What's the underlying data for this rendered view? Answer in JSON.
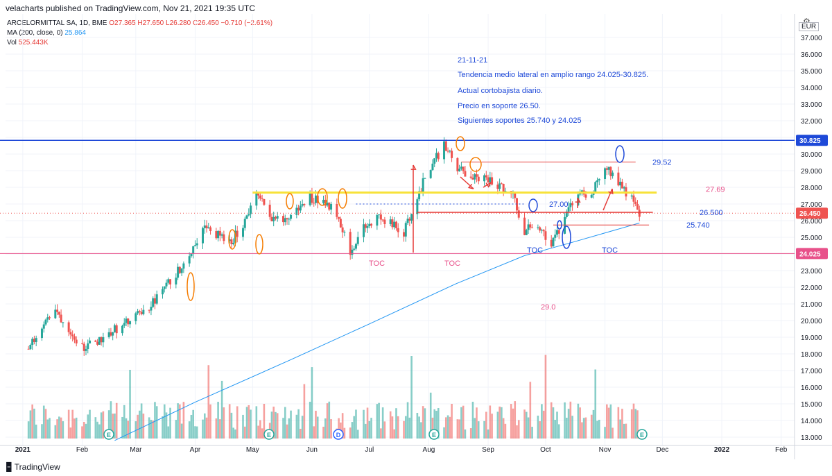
{
  "header": {
    "publish_line": "velacharts published on TradingView.com, Nov 21, 2021 19:35 UTC",
    "symbol_line_prefix": "ARCELORMITTAL SA, 1D, BME",
    "ohlc": {
      "open": "O27.365",
      "high": "H27.650",
      "low": "L26.280",
      "close": "C26.450",
      "change": "−0.710 (−2.61%)"
    },
    "ma_label": "MA (200, close, 0)",
    "ma_value": "25.864",
    "vol_label": "Vol",
    "vol_value": "525.443K",
    "currency": "EUR",
    "footer_logo": "TradingView"
  },
  "chart_data": {
    "type": "candlestick",
    "instrument": "ARCELORMITTAL SA",
    "interval": "1D",
    "exchange": "BME",
    "currency": "EUR",
    "y_axis": {
      "side": "right",
      "ticks": [
        13,
        14,
        15,
        16,
        17,
        18,
        19,
        20,
        21,
        22,
        23,
        24,
        25,
        26,
        27,
        28,
        29,
        30,
        31,
        32,
        33,
        34,
        35,
        36,
        37
      ],
      "tick_labels": [
        "13.000",
        "14.000",
        "15.000",
        "16.000",
        "17.000",
        "18.000",
        "19.000",
        "20.000",
        "21.000",
        "22.000",
        "23.000",
        "24.000",
        "25.000",
        "26.000",
        "27.000",
        "28.000",
        "29.000",
        "30.000",
        "31.000",
        "32.000",
        "33.000",
        "34.000",
        "35.000",
        "36.000",
        "37.000"
      ],
      "ylim": [
        12.6,
        37.8
      ]
    },
    "x_axis": {
      "labels": [
        "2021",
        "Feb",
        "Mar",
        "Apr",
        "May",
        "Jun",
        "Jul",
        "Aug",
        "Sep",
        "Oct",
        "Nov",
        "Dec",
        "2022",
        "Feb"
      ],
      "label_dates": [
        "2021-01-01",
        "2021-02-01",
        "2021-03-01",
        "2021-04-01",
        "2021-05-01",
        "2021-06-01",
        "2021-07-01",
        "2021-08-01",
        "2021-09-01",
        "2021-10-01",
        "2021-11-01",
        "2021-12-01",
        "2022-01-01",
        "2022-02-01"
      ],
      "xlim": [
        "2020-12-23",
        "2022-02-08"
      ]
    },
    "price_path": [
      {
        "date": "2021-01-04",
        "close": 18.3
      },
      {
        "date": "2021-01-11",
        "close": 19.8
      },
      {
        "date": "2021-01-18",
        "close": 20.6
      },
      {
        "date": "2021-01-25",
        "close": 19.6
      },
      {
        "date": "2021-02-01",
        "close": 18.4
      },
      {
        "date": "2021-02-08",
        "close": 18.7
      },
      {
        "date": "2021-02-15",
        "close": 19.3
      },
      {
        "date": "2021-02-22",
        "close": 19.7
      },
      {
        "date": "2021-03-01",
        "close": 20.2
      },
      {
        "date": "2021-03-08",
        "close": 20.8
      },
      {
        "date": "2021-03-15",
        "close": 21.8
      },
      {
        "date": "2021-03-22",
        "close": 22.8
      },
      {
        "date": "2021-03-29",
        "close": 24.0
      },
      {
        "date": "2021-04-05",
        "close": 25.6
      },
      {
        "date": "2021-04-12",
        "close": 25.2
      },
      {
        "date": "2021-04-19",
        "close": 24.6
      },
      {
        "date": "2021-04-26",
        "close": 25.8
      },
      {
        "date": "2021-05-03",
        "close": 27.6
      },
      {
        "date": "2021-05-10",
        "close": 26.3
      },
      {
        "date": "2021-05-17",
        "close": 25.9
      },
      {
        "date": "2021-05-24",
        "close": 26.6
      },
      {
        "date": "2021-05-31",
        "close": 27.4
      },
      {
        "date": "2021-06-07",
        "close": 27.2
      },
      {
        "date": "2021-06-14",
        "close": 26.5
      },
      {
        "date": "2021-06-21",
        "close": 24.2
      },
      {
        "date": "2021-06-28",
        "close": 25.5
      },
      {
        "date": "2021-07-05",
        "close": 26.2
      },
      {
        "date": "2021-07-12",
        "close": 25.8
      },
      {
        "date": "2021-07-19",
        "close": 25.3
      },
      {
        "date": "2021-07-26",
        "close": 27.5
      },
      {
        "date": "2021-08-02",
        "close": 29.3
      },
      {
        "date": "2021-08-09",
        "close": 30.5
      },
      {
        "date": "2021-08-16",
        "close": 29.2
      },
      {
        "date": "2021-08-23",
        "close": 28.5
      },
      {
        "date": "2021-08-30",
        "close": 28.6
      },
      {
        "date": "2021-09-06",
        "close": 28.1
      },
      {
        "date": "2021-09-13",
        "close": 27.9
      },
      {
        "date": "2021-09-20",
        "close": 25.4
      },
      {
        "date": "2021-09-27",
        "close": 25.8
      },
      {
        "date": "2021-10-04",
        "close": 24.6
      },
      {
        "date": "2021-10-11",
        "close": 26.0
      },
      {
        "date": "2021-10-18",
        "close": 27.8
      },
      {
        "date": "2021-10-25",
        "close": 27.5
      },
      {
        "date": "2021-11-01",
        "close": 29.4
      },
      {
        "date": "2021-11-08",
        "close": 28.3
      },
      {
        "date": "2021-11-15",
        "close": 27.3
      },
      {
        "date": "2021-11-19",
        "close": 26.45
      }
    ],
    "last_close": 26.45,
    "moving_average": {
      "name": "MA (200, close, 0)",
      "points": [
        {
          "date": "2021-02-18",
          "value": 12.8
        },
        {
          "date": "2021-04-01",
          "value": 15.1
        },
        {
          "date": "2021-05-20",
          "value": 17.6
        },
        {
          "date": "2021-07-01",
          "value": 19.8
        },
        {
          "date": "2021-08-15",
          "value": 22.2
        },
        {
          "date": "2021-09-20",
          "value": 23.9
        },
        {
          "date": "2021-10-15",
          "value": 24.7
        },
        {
          "date": "2021-11-19",
          "value": 25.86
        }
      ]
    },
    "volume_bar_count": 230,
    "horizontal_levels": [
      {
        "price": 30.825,
        "label": "30.825",
        "color": "#1e49d8",
        "badge": true
      },
      {
        "price": 24.025,
        "label": "24.025",
        "color": "#e8518a",
        "badge": true
      },
      {
        "price": 26.5,
        "label": "26.500",
        "color": "#e53935",
        "badge": false
      },
      {
        "price": 26.45,
        "label": "26.450",
        "color": "#e53935",
        "badge": true
      }
    ],
    "annotations": {
      "note_lines": [
        "21-11-21",
        "Tendencia medio lateral  en amplio rango 24.025-30.825.",
        "Actual cortobajista diario.",
        "Precio en soporte 26.50.",
        "Siguientes soportes 25.740 y 24.025"
      ],
      "level_labels": [
        "29.52",
        "27.69",
        "27.00",
        "26.500",
        "25.740",
        "29.0"
      ],
      "toc_labels": [
        "TOC",
        "TOC",
        "TOC",
        "TOC"
      ],
      "event_markers": [
        "E",
        "E",
        "D",
        "E",
        "E"
      ]
    }
  }
}
